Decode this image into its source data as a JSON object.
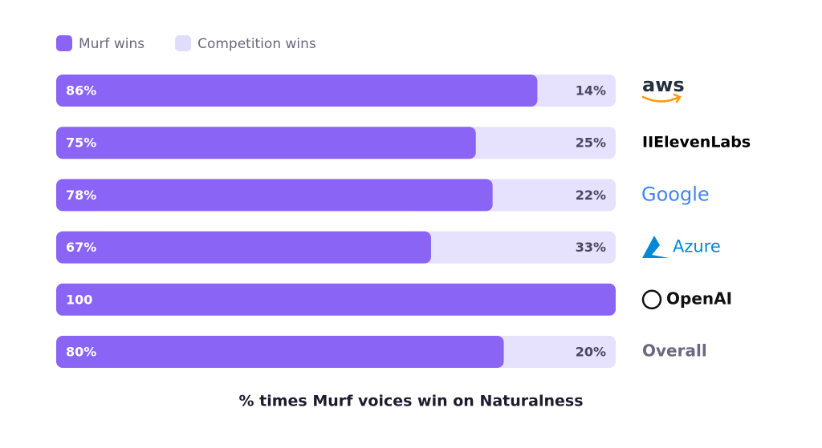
{
  "chart_data": {
    "type": "stacked_bar_horizontal",
    "title": "% times Murf voices win on Naturalness",
    "categories": [
      "aws",
      "IIElevenLabs",
      "Google",
      "Azure",
      "OpenAI",
      "Overall"
    ],
    "series": [
      {
        "name": "Murf wins",
        "color": "#8a64f4",
        "values": [
          86,
          75,
          78,
          67,
          100,
          80
        ],
        "value_labels": [
          "86%",
          "75%",
          "78%",
          "67%",
          "100",
          "80%"
        ]
      },
      {
        "name": "Competition wins",
        "color": "#e6e1fc",
        "values": [
          14,
          25,
          22,
          33,
          0,
          20
        ],
        "value_labels": [
          "14%",
          "25%",
          "22%",
          "33%",
          null,
          "20%"
        ]
      }
    ],
    "xlim": [
      0,
      100
    ],
    "legend": "top-left"
  }
}
